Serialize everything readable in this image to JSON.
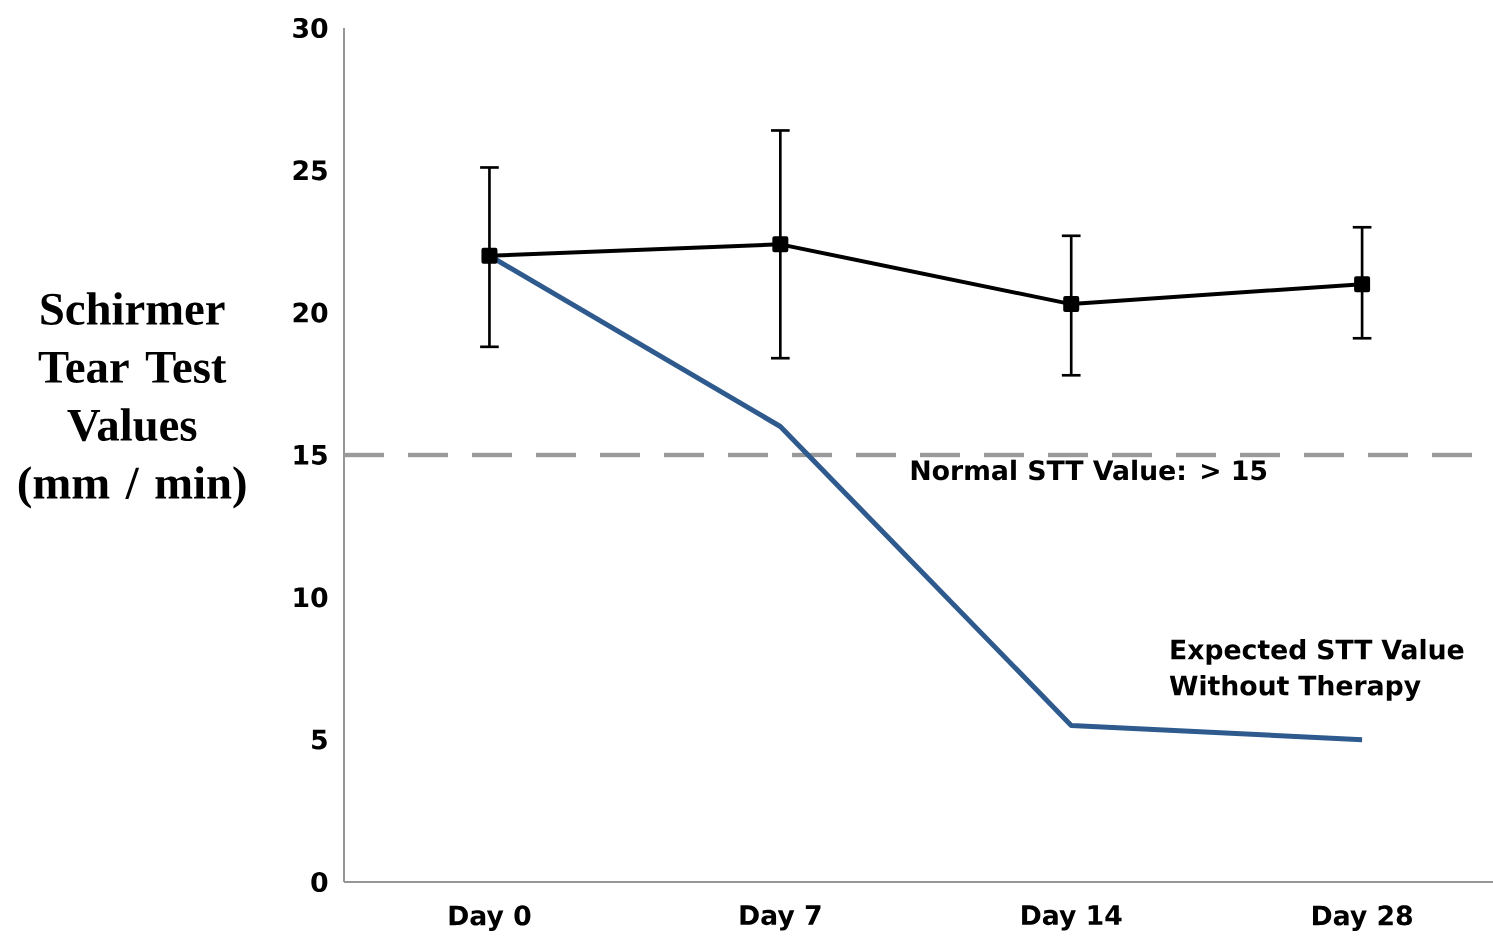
{
  "chart_data": {
    "type": "line",
    "ylabel": "Schirmer Tear Test Values (mm / min)",
    "categories": [
      "Day 0",
      "Day 7",
      "Day 14",
      "Day 28"
    ],
    "marker": "square",
    "grid": false,
    "legend": false,
    "series": [
      {
        "color": "#000000",
        "values": [
          22.0,
          22.4,
          20.3,
          21.0
        ],
        "errors": [
          [
            18.8,
            25.1
          ],
          [
            18.4,
            26.4
          ],
          [
            17.8,
            22.7
          ],
          [
            19.1,
            23.0
          ]
        ]
      },
      {
        "name": "Expected STT Value Without Therapy",
        "color": "#2e5a8e",
        "marker": "none",
        "values": [
          22.0,
          16.0,
          5.5,
          5.0
        ]
      }
    ],
    "ylim": [
      0,
      30
    ],
    "yticks": [
      0,
      5,
      10,
      15,
      20,
      25,
      30
    ],
    "ref_lines": [
      {
        "axis": "y",
        "value": 15,
        "label": "Normal STT Value: > 15",
        "color": "#999999",
        "line_style": "dashed"
      }
    ]
  }
}
